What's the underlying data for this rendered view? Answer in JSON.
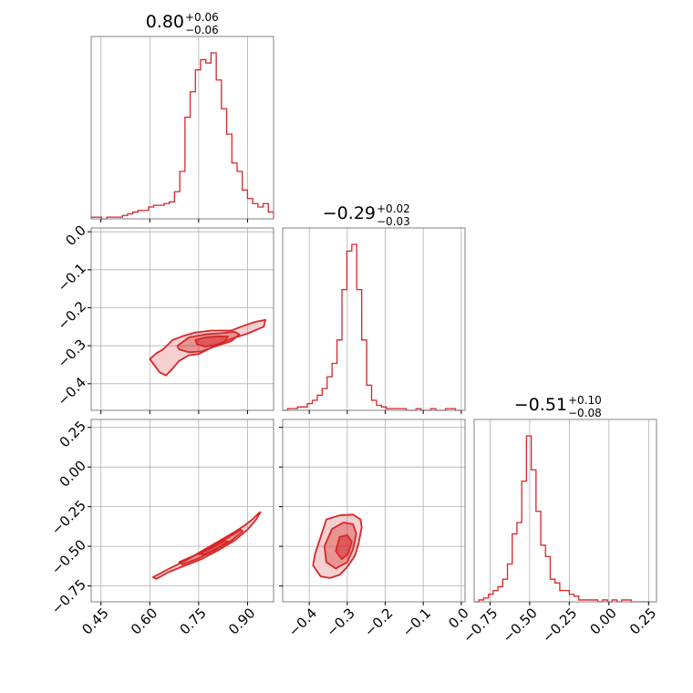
{
  "chart_data": {
    "type": "corner",
    "color": "#d62728",
    "grid": true,
    "parameters": [
      {
        "range": [
          0.42,
          0.98
        ],
        "ticks": [
          0.45,
          0.6,
          0.75,
          0.9
        ],
        "tick_labels": [
          "0.45",
          "0.60",
          "0.75",
          "0.90"
        ]
      },
      {
        "range": [
          -0.47,
          0.01
        ],
        "ticks": [
          -0.4,
          -0.3,
          -0.2,
          -0.1,
          0.0
        ],
        "tick_labels": [
          "−0.4",
          "−0.3",
          "−0.2",
          "−0.1",
          "0.0"
        ]
      },
      {
        "range": [
          -0.85,
          0.3
        ],
        "ticks": [
          -0.75,
          -0.5,
          -0.25,
          0.0,
          0.25
        ],
        "tick_labels": [
          "−0.75",
          "−0.50",
          "−0.25",
          "0.00",
          "0.25"
        ]
      }
    ],
    "titles": [
      {
        "median": "0.80",
        "plus": "+0.06",
        "minus": "−0.06"
      },
      {
        "median": "−0.29",
        "plus": "+0.02",
        "minus": "−0.03"
      },
      {
        "median": "−0.51",
        "plus": "+0.10",
        "minus": "−0.08"
      }
    ],
    "histograms": [
      {
        "param": 0,
        "bins": [
          0.42,
          0.436,
          0.452,
          0.468,
          0.484,
          0.5,
          0.516,
          0.532,
          0.548,
          0.564,
          0.58,
          0.596,
          0.612,
          0.628,
          0.644,
          0.66,
          0.676,
          0.692,
          0.708,
          0.724,
          0.74,
          0.756,
          0.772,
          0.788,
          0.804,
          0.82,
          0.836,
          0.852,
          0.868,
          0.884,
          0.9,
          0.916,
          0.932,
          0.948,
          0.964,
          0.98
        ],
        "counts": [
          1,
          1,
          0,
          1,
          1,
          1,
          2,
          3,
          4,
          5,
          5,
          7,
          8,
          8,
          9,
          10,
          16,
          28,
          60,
          75,
          88,
          94,
          92,
          98,
          82,
          65,
          50,
          33,
          28,
          17,
          12,
          9,
          7,
          9,
          4,
          0
        ]
      },
      {
        "param": 1,
        "bins": [
          -0.47,
          -0.457,
          -0.444,
          -0.431,
          -0.418,
          -0.405,
          -0.392,
          -0.379,
          -0.366,
          -0.353,
          -0.34,
          -0.327,
          -0.314,
          -0.301,
          -0.288,
          -0.275,
          -0.262,
          -0.249,
          -0.236,
          -0.223,
          -0.21,
          -0.197,
          -0.184,
          -0.171,
          -0.158,
          -0.145,
          -0.132,
          -0.119,
          -0.106,
          -0.093,
          -0.08,
          -0.067,
          -0.054,
          -0.041,
          -0.028,
          -0.015,
          -0.002
        ],
        "counts": [
          0,
          1,
          1,
          2,
          2,
          4,
          6,
          9,
          13,
          20,
          28,
          42,
          72,
          95,
          99,
          72,
          42,
          15,
          6,
          3,
          2,
          1,
          1,
          1,
          1,
          0,
          0,
          1,
          0,
          0,
          1,
          0,
          0,
          1,
          1,
          0
        ]
      },
      {
        "param": 2,
        "bins": [
          -0.85,
          -0.82,
          -0.79,
          -0.76,
          -0.73,
          -0.7,
          -0.67,
          -0.64,
          -0.61,
          -0.58,
          -0.55,
          -0.52,
          -0.49,
          -0.46,
          -0.43,
          -0.4,
          -0.37,
          -0.34,
          -0.31,
          -0.28,
          -0.25,
          -0.22,
          -0.19,
          -0.16,
          -0.13,
          -0.1,
          -0.07,
          -0.04,
          -0.01,
          0.02,
          0.05,
          0.08,
          0.11,
          0.14,
          0.17,
          0.2,
          0.23,
          0.26
        ],
        "counts": [
          0,
          1,
          2,
          4,
          6,
          8,
          12,
          20,
          36,
          42,
          64,
          88,
          70,
          48,
          30,
          24,
          12,
          10,
          6,
          6,
          4,
          3,
          1,
          1,
          1,
          1,
          0,
          1,
          0,
          1,
          0,
          1,
          1,
          0,
          0,
          0,
          0
        ]
      }
    ],
    "contours": [
      {
        "x_param": 0,
        "y_param": 1,
        "levels": [
          [
            [
              0.62,
              -0.32
            ],
            [
              0.64,
              -0.31
            ],
            [
              0.67,
              -0.285
            ],
            [
              0.7,
              -0.275
            ],
            [
              0.74,
              -0.265
            ],
            [
              0.79,
              -0.26
            ],
            [
              0.85,
              -0.26
            ],
            [
              0.88,
              -0.25
            ],
            [
              0.92,
              -0.238
            ],
            [
              0.955,
              -0.232
            ],
            [
              0.95,
              -0.25
            ],
            [
              0.9,
              -0.268
            ],
            [
              0.85,
              -0.282
            ],
            [
              0.8,
              -0.3
            ],
            [
              0.75,
              -0.322
            ],
            [
              0.72,
              -0.325
            ],
            [
              0.69,
              -0.34
            ],
            [
              0.67,
              -0.36
            ],
            [
              0.65,
              -0.378
            ],
            [
              0.63,
              -0.37
            ],
            [
              0.6,
              -0.335
            ],
            [
              0.62,
              -0.32
            ]
          ],
          [
            [
              0.685,
              -0.3
            ],
            [
              0.72,
              -0.278
            ],
            [
              0.77,
              -0.27
            ],
            [
              0.82,
              -0.267
            ],
            [
              0.86,
              -0.263
            ],
            [
              0.875,
              -0.27
            ],
            [
              0.85,
              -0.288
            ],
            [
              0.8,
              -0.302
            ],
            [
              0.76,
              -0.315
            ],
            [
              0.72,
              -0.317
            ],
            [
              0.69,
              -0.31
            ],
            [
              0.685,
              -0.3
            ]
          ],
          [
            [
              0.74,
              -0.285
            ],
            [
              0.77,
              -0.278
            ],
            [
              0.81,
              -0.275
            ],
            [
              0.84,
              -0.276
            ],
            [
              0.83,
              -0.29
            ],
            [
              0.8,
              -0.298
            ],
            [
              0.77,
              -0.302
            ],
            [
              0.745,
              -0.296
            ],
            [
              0.74,
              -0.285
            ]
          ]
        ]
      },
      {
        "x_param": 0,
        "y_param": 2,
        "levels": [
          [
            [
              0.61,
              -0.695
            ],
            [
              0.66,
              -0.64
            ],
            [
              0.71,
              -0.59
            ],
            [
              0.76,
              -0.53
            ],
            [
              0.81,
              -0.47
            ],
            [
              0.86,
              -0.41
            ],
            [
              0.89,
              -0.37
            ],
            [
              0.915,
              -0.33
            ],
            [
              0.935,
              -0.29
            ],
            [
              0.94,
              -0.285
            ],
            [
              0.925,
              -0.335
            ],
            [
              0.9,
              -0.395
            ],
            [
              0.86,
              -0.465
            ],
            [
              0.81,
              -0.525
            ],
            [
              0.76,
              -0.58
            ],
            [
              0.71,
              -0.62
            ],
            [
              0.66,
              -0.66
            ],
            [
              0.62,
              -0.705
            ],
            [
              0.61,
              -0.695
            ]
          ],
          [
            [
              0.69,
              -0.6
            ],
            [
              0.74,
              -0.555
            ],
            [
              0.79,
              -0.5
            ],
            [
              0.84,
              -0.445
            ],
            [
              0.88,
              -0.395
            ],
            [
              0.885,
              -0.405
            ],
            [
              0.85,
              -0.465
            ],
            [
              0.8,
              -0.525
            ],
            [
              0.75,
              -0.575
            ],
            [
              0.7,
              -0.615
            ],
            [
              0.69,
              -0.6
            ]
          ],
          [
            [
              0.75,
              -0.55
            ],
            [
              0.79,
              -0.51
            ],
            [
              0.83,
              -0.465
            ],
            [
              0.84,
              -0.47
            ],
            [
              0.81,
              -0.51
            ],
            [
              0.77,
              -0.55
            ],
            [
              0.75,
              -0.55
            ]
          ]
        ]
      },
      {
        "x_param": 1,
        "y_param": 2,
        "levels": [
          [
            [
              -0.355,
              -0.33
            ],
            [
              -0.32,
              -0.305
            ],
            [
              -0.285,
              -0.3
            ],
            [
              -0.265,
              -0.33
            ],
            [
              -0.262,
              -0.38
            ],
            [
              -0.27,
              -0.48
            ],
            [
              -0.28,
              -0.56
            ],
            [
              -0.3,
              -0.63
            ],
            [
              -0.32,
              -0.68
            ],
            [
              -0.345,
              -0.7
            ],
            [
              -0.37,
              -0.69
            ],
            [
              -0.39,
              -0.62
            ],
            [
              -0.385,
              -0.55
            ],
            [
              -0.37,
              -0.44
            ],
            [
              -0.355,
              -0.33
            ]
          ],
          [
            [
              -0.34,
              -0.39
            ],
            [
              -0.31,
              -0.35
            ],
            [
              -0.285,
              -0.36
            ],
            [
              -0.276,
              -0.42
            ],
            [
              -0.285,
              -0.52
            ],
            [
              -0.3,
              -0.6
            ],
            [
              -0.33,
              -0.64
            ],
            [
              -0.355,
              -0.6
            ],
            [
              -0.36,
              -0.5
            ],
            [
              -0.34,
              -0.39
            ]
          ],
          [
            [
              -0.32,
              -0.44
            ],
            [
              -0.3,
              -0.43
            ],
            [
              -0.288,
              -0.47
            ],
            [
              -0.298,
              -0.55
            ],
            [
              -0.315,
              -0.58
            ],
            [
              -0.33,
              -0.53
            ],
            [
              -0.32,
              -0.44
            ]
          ]
        ]
      }
    ]
  }
}
